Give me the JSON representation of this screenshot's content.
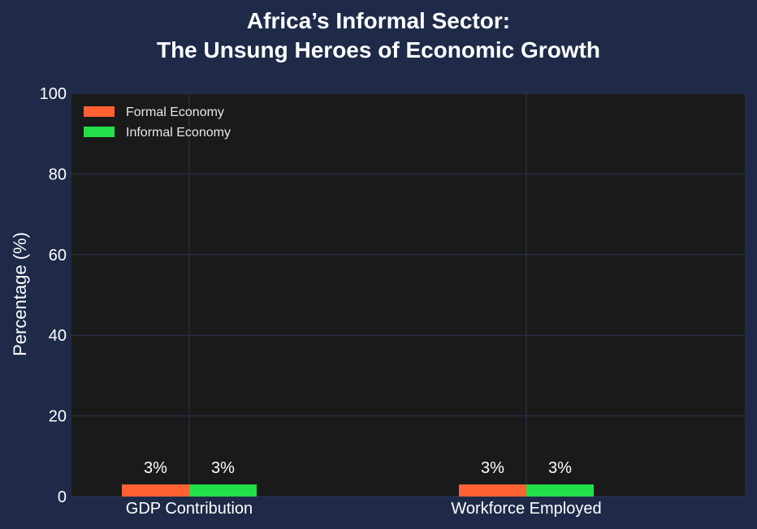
{
  "chart_data": {
    "type": "bar",
    "title_line1": "Africa’s Informal Sector:",
    "title_line2": "The Unsung Heroes of Economic Growth",
    "xlabel": "",
    "ylabel": "Percentage (%)",
    "categories": [
      "GDP Contribution",
      "Workforce Employed"
    ],
    "series": [
      {
        "name": "Formal Economy",
        "values": [
          3,
          3
        ],
        "color": "#ff6133"
      },
      {
        "name": "Informal Economy",
        "values": [
          3,
          3
        ],
        "color": "#22e04a"
      }
    ],
    "data_labels": [
      [
        "3%",
        "3%"
      ],
      [
        "3%",
        "3%"
      ]
    ],
    "ylim": [
      0,
      100
    ],
    "yticks": [
      0,
      20,
      40,
      60,
      80,
      100
    ],
    "grid": true,
    "legend_position": "top-left",
    "colors": {
      "background": "#1e2a48",
      "plot_background": "#1a1a1a",
      "grid": "#2b3552",
      "text": "#ffffff"
    }
  }
}
